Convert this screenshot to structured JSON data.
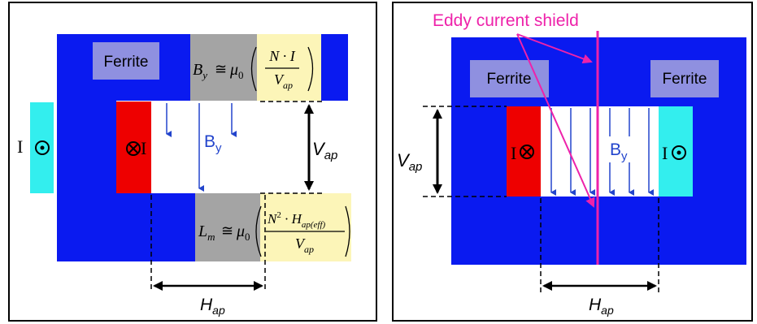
{
  "left_panel": {
    "ferrite_label": "Ferrite",
    "current_symbol": "I",
    "field_label": "B",
    "field_sub": "y",
    "vap_label": "V",
    "vap_sub": "ap",
    "hap_label": "H",
    "hap_sub": "ap",
    "eq_by": {
      "lhs": "B",
      "lhs_sub": "y",
      "rel": "≅",
      "mu": "μ",
      "mu_sub": "0",
      "num": "N · I",
      "den": "V",
      "den_sub": "ap"
    },
    "eq_lm": {
      "lhs": "L",
      "lhs_sub": "m",
      "rel": "≅",
      "mu": "μ",
      "mu_sub": "0",
      "num_base": "N",
      "num_sup": "2",
      "num_mid": " · H",
      "num_sub": "ap(eff)",
      "den": "V",
      "den_sub": "ap"
    }
  },
  "right_panel": {
    "shield_label": "Eddy current shield",
    "ferrite_left": "Ferrite",
    "ferrite_right": "Ferrite",
    "current_symbol": "I",
    "field_label": "B",
    "field_sub": "y",
    "vap_label": "V",
    "vap_sub": "ap",
    "hap_label": "H",
    "hap_sub": "ap"
  },
  "colors": {
    "ferrite": "#0a1af0",
    "label_box": "#8f90e0",
    "conductor_red": "#ee0000",
    "conductor_cyan": "#33eeee",
    "field_arrow": "#2244cc",
    "equation_bg": "#fcf5b8",
    "equation_gray": "#a4a4a4",
    "shield": "#ee22aa"
  },
  "icons": {
    "dot": "current-out-of-page-icon",
    "cross": "current-into-page-icon"
  }
}
